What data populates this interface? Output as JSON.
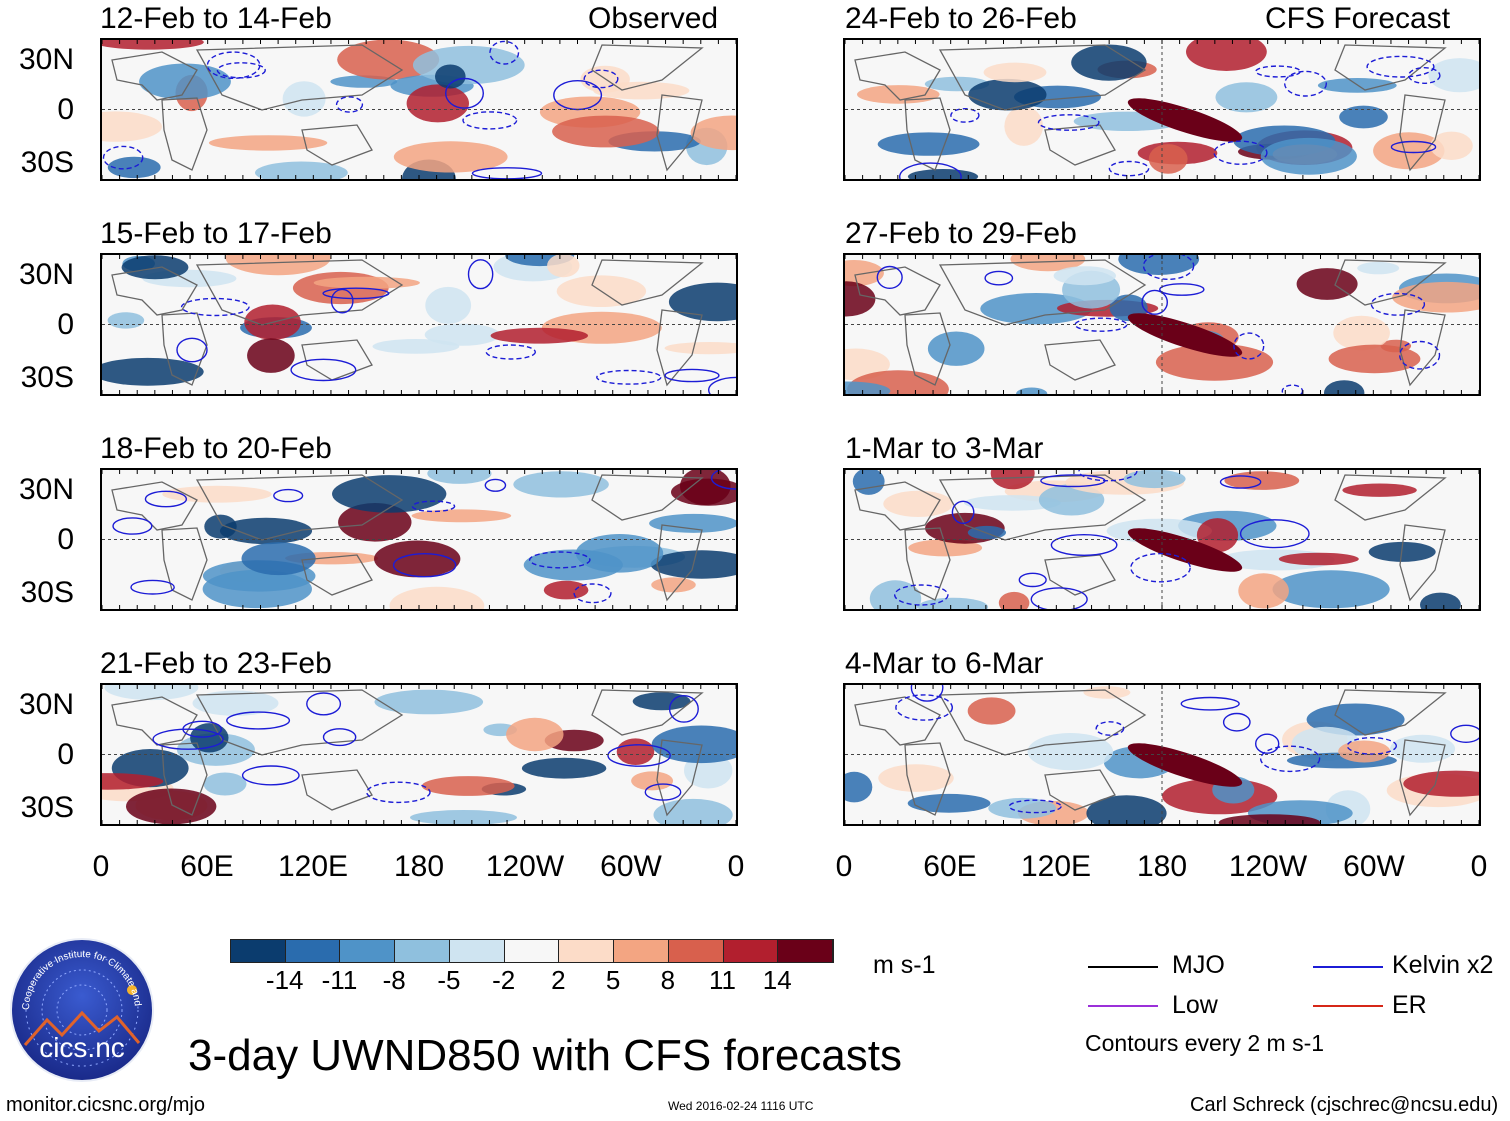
{
  "panels": {
    "left": [
      {
        "title": "12-Feb to 14-Feb",
        "tag": "Observed"
      },
      {
        "title": "15-Feb to 17-Feb",
        "tag": ""
      },
      {
        "title": "18-Feb to 20-Feb",
        "tag": ""
      },
      {
        "title": "21-Feb to 23-Feb",
        "tag": ""
      }
    ],
    "right": [
      {
        "title": "24-Feb to 26-Feb",
        "tag": "CFS Forecast"
      },
      {
        "title": "27-Feb to 29-Feb",
        "tag": ""
      },
      {
        "title": "1-Mar to 3-Mar",
        "tag": ""
      },
      {
        "title": "4-Mar to 6-Mar",
        "tag": ""
      }
    ]
  },
  "lat_labels": [
    "30N",
    "0",
    "30S"
  ],
  "lon_labels": [
    "0",
    "60E",
    "120E",
    "180",
    "120W",
    "60W",
    "0"
  ],
  "colorbar": {
    "colors": [
      "#0b3c6e",
      "#2a6cae",
      "#4f93c8",
      "#8fc0de",
      "#cfe4f1",
      "#f7f7f7",
      "#fcdcc8",
      "#f3a582",
      "#d8604d",
      "#b21f2e",
      "#6a0018"
    ],
    "labels": [
      "-14",
      "-11",
      "-8",
      "-5",
      "-2",
      "2",
      "5",
      "8",
      "11",
      "14"
    ],
    "units": "m s-1"
  },
  "legend": {
    "items": [
      {
        "label": "MJO",
        "color": "#000000"
      },
      {
        "label": "Kelvin x2",
        "color": "#1c1cd6"
      },
      {
        "label": "Low",
        "color": "#9b30d9"
      },
      {
        "label": "ER",
        "color": "#d62718"
      }
    ],
    "note": "Contours every 2 m s-1"
  },
  "logo": {
    "text": "cics.nc",
    "ring_text": "Cooperative Institute for Climate and Satellites"
  },
  "main_title": "3-day UWND850 with CFS forecasts",
  "footer": {
    "url": "monitor.cicsnc.org/mjo",
    "timestamp": "Wed 2016-02-24 1116 UTC",
    "author": "Carl Schreck (cjschrec@ncsu.edu)"
  }
}
